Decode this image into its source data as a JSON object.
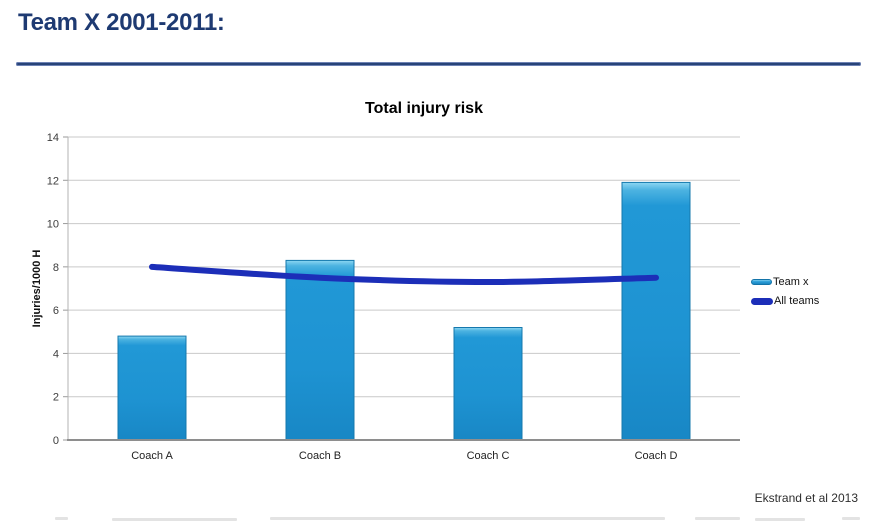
{
  "page": {
    "title": "Team X 2001-2011:",
    "citation": "Ekstrand et al 2013"
  },
  "chart_data": {
    "type": "bar",
    "title": "Total injury risk",
    "categories": [
      "Coach A",
      "Coach B",
      "Coach C",
      "Coach D"
    ],
    "series": [
      {
        "name": "Team x",
        "type": "bar",
        "values": [
          4.8,
          8.3,
          5.2,
          11.9
        ],
        "color": "#1e96d4"
      },
      {
        "name": "All teams",
        "type": "line",
        "values": [
          8.0,
          7.5,
          7.3,
          7.5
        ],
        "color": "#1c2eb8"
      }
    ],
    "xlabel": "",
    "ylabel": "Injuries/1000 H",
    "ylim": [
      0,
      14
    ],
    "ytick_step": 2,
    "grid": true,
    "legend_position": "right"
  },
  "colors": {
    "heading": "#1e3a72",
    "divider": "#274378",
    "bar_fill": "#1e96d4",
    "bar_border": "#1578ad",
    "line": "#1c2eb8",
    "gridline": "#c9c9c9",
    "axis": "#8e8e8e",
    "tick_text": "#3c3c3c"
  }
}
